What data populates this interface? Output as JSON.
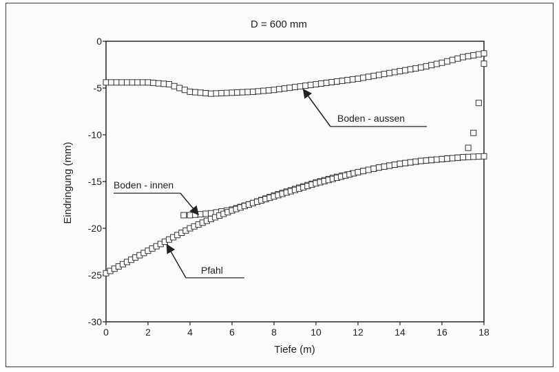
{
  "chart_data": {
    "type": "scatter",
    "title": "D = 600 mm",
    "xlabel": "Tiefe (m)",
    "ylabel": "Eindringung (mm)",
    "xlim": [
      0,
      18
    ],
    "ylim": [
      -30,
      0
    ],
    "xticks": [
      "0",
      "2",
      "4",
      "6",
      "8",
      "10",
      "12",
      "14",
      "16",
      "18"
    ],
    "yticks": [
      "0",
      "-5",
      "-10",
      "-15",
      "-20",
      "-25",
      "-30"
    ],
    "grid": false,
    "marker": "open-square",
    "colors": {
      "axis": "#222222",
      "marker": "#333333",
      "frame": "#3a3a3a"
    },
    "series": [
      {
        "name": "Boden - aussen",
        "x": [
          0,
          1,
          2,
          3,
          3.5,
          4,
          4.5,
          5,
          6,
          7,
          8,
          9,
          10,
          11,
          12,
          13,
          14,
          15,
          16,
          16.5,
          17,
          17.5,
          18
        ],
        "y": [
          -4.4,
          -4.4,
          -4.4,
          -4.6,
          -5.0,
          -5.4,
          -5.5,
          -5.6,
          -5.5,
          -5.4,
          -5.2,
          -4.9,
          -4.6,
          -4.3,
          -4.0,
          -3.6,
          -3.2,
          -2.8,
          -2.3,
          -2.0,
          -1.7,
          -1.5,
          -1.3
        ]
      },
      {
        "name": "Boden - innen",
        "x": [
          3.7,
          4,
          5,
          6,
          7,
          8,
          9,
          10,
          11,
          12,
          13,
          14,
          15,
          16,
          17,
          17.5,
          18
        ],
        "y": [
          -18.6,
          -18.6,
          -18.4,
          -18.0,
          -17.3,
          -16.5,
          -15.8,
          -15.1,
          -14.5,
          -14.0,
          -13.5,
          -13.1,
          -12.8,
          -12.6,
          -12.4,
          -12.35,
          -12.3
        ]
      },
      {
        "name": "Pfahl",
        "x": [
          0,
          1,
          2,
          3,
          4,
          5,
          6,
          7,
          8,
          9,
          10,
          11,
          12,
          13,
          14,
          15,
          16,
          17,
          17.25,
          17.5,
          17.75,
          18
        ],
        "y": [
          -24.8,
          -23.6,
          -22.4,
          -21.2,
          -20.0,
          -19.0,
          -18.1,
          -17.3,
          -16.6,
          -15.9,
          -15.2,
          -14.6,
          -14.0,
          -13.5,
          -13.1,
          -12.8,
          -12.6,
          -12.4,
          -11.4,
          -9.8,
          -6.6,
          -2.4
        ]
      }
    ],
    "annotations": [
      {
        "text": "Boden - aussen",
        "series": "Boden - aussen"
      },
      {
        "text": "Boden - innen",
        "series": "Boden - innen"
      },
      {
        "text": "Pfahl",
        "series": "Pfahl"
      }
    ]
  }
}
